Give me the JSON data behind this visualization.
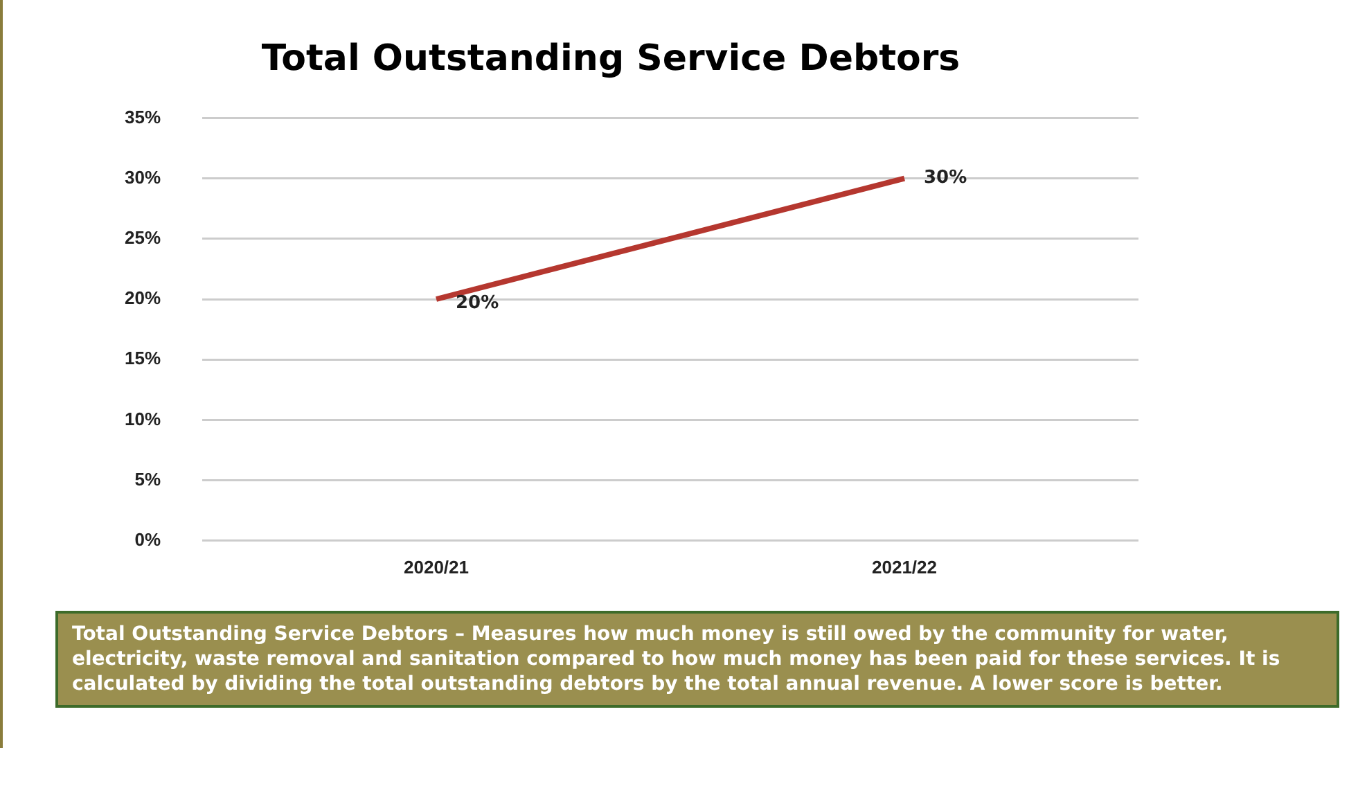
{
  "chart_data": {
    "type": "line",
    "title": "Total Outstanding Service Debtors",
    "categories": [
      "2020/21",
      "2021/22"
    ],
    "series": [
      {
        "color": "#b5372f",
        "values": [
          20,
          30
        ],
        "value_labels": [
          "20%",
          "30%"
        ]
      }
    ],
    "ylim": [
      0,
      35
    ],
    "yticks": [
      {
        "value": 0,
        "label": "0%"
      },
      {
        "value": 5,
        "label": "5%"
      },
      {
        "value": 10,
        "label": "10%"
      },
      {
        "value": 15,
        "label": "15%"
      },
      {
        "value": 20,
        "label": "20%"
      },
      {
        "value": 25,
        "label": "25%"
      },
      {
        "value": 30,
        "label": "30%"
      },
      {
        "value": 35,
        "label": "35%"
      }
    ],
    "grid": "y",
    "legend": false,
    "marker": "none",
    "line_style": "solid",
    "annotations": [
      "Total Outstanding Service Debtors – Measures how much money is still owed by the community for water, electricity, waste removal and sanitation compared to how much money has been paid for these services. It is calculated by dividing the total outstanding debtors by the total annual revenue. A lower score is better."
    ]
  }
}
